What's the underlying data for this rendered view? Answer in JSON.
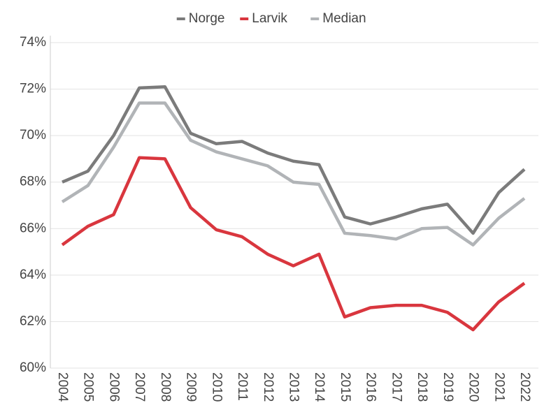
{
  "chart_data": {
    "type": "line",
    "categories": [
      "2004",
      "2005",
      "2006",
      "2007",
      "2008",
      "2009",
      "2010",
      "2011",
      "2012",
      "2013",
      "2014",
      "2015",
      "2016",
      "2017",
      "2018",
      "2019",
      "2020",
      "2021",
      "2022"
    ],
    "series": [
      {
        "name": "Norge",
        "color": "#7b7b7b",
        "values": [
          68.0,
          68.47,
          70.0,
          72.05,
          72.1,
          70.1,
          69.65,
          69.75,
          69.25,
          68.9,
          68.75,
          66.5,
          66.2,
          66.5,
          66.85,
          67.05,
          65.8,
          67.55,
          68.55
        ]
      },
      {
        "name": "Larvik",
        "color": "#d9363e",
        "values": [
          65.3,
          66.1,
          66.6,
          69.05,
          69.0,
          66.9,
          65.95,
          65.65,
          64.9,
          64.4,
          64.9,
          62.2,
          62.6,
          62.7,
          62.7,
          62.4,
          61.65,
          62.85,
          63.65
        ]
      },
      {
        "name": "Median",
        "color": "#b1b4b7",
        "values": [
          67.15,
          67.85,
          69.5,
          71.4,
          71.4,
          69.8,
          69.3,
          69.0,
          68.7,
          68.0,
          67.9,
          65.8,
          65.7,
          65.55,
          66.0,
          66.05,
          65.3,
          66.45,
          67.3
        ]
      }
    ],
    "ylim": [
      60,
      74
    ],
    "yticks": [
      {
        "value": 60,
        "label": "60%"
      },
      {
        "value": 62,
        "label": "62%"
      },
      {
        "value": 64,
        "label": "64%"
      },
      {
        "value": 66,
        "label": "66%"
      },
      {
        "value": 68,
        "label": "68%"
      },
      {
        "value": 70,
        "label": "70%"
      },
      {
        "value": 72,
        "label": "72%"
      },
      {
        "value": 74,
        "label": "74%"
      }
    ],
    "grid": true,
    "legend": "top"
  }
}
